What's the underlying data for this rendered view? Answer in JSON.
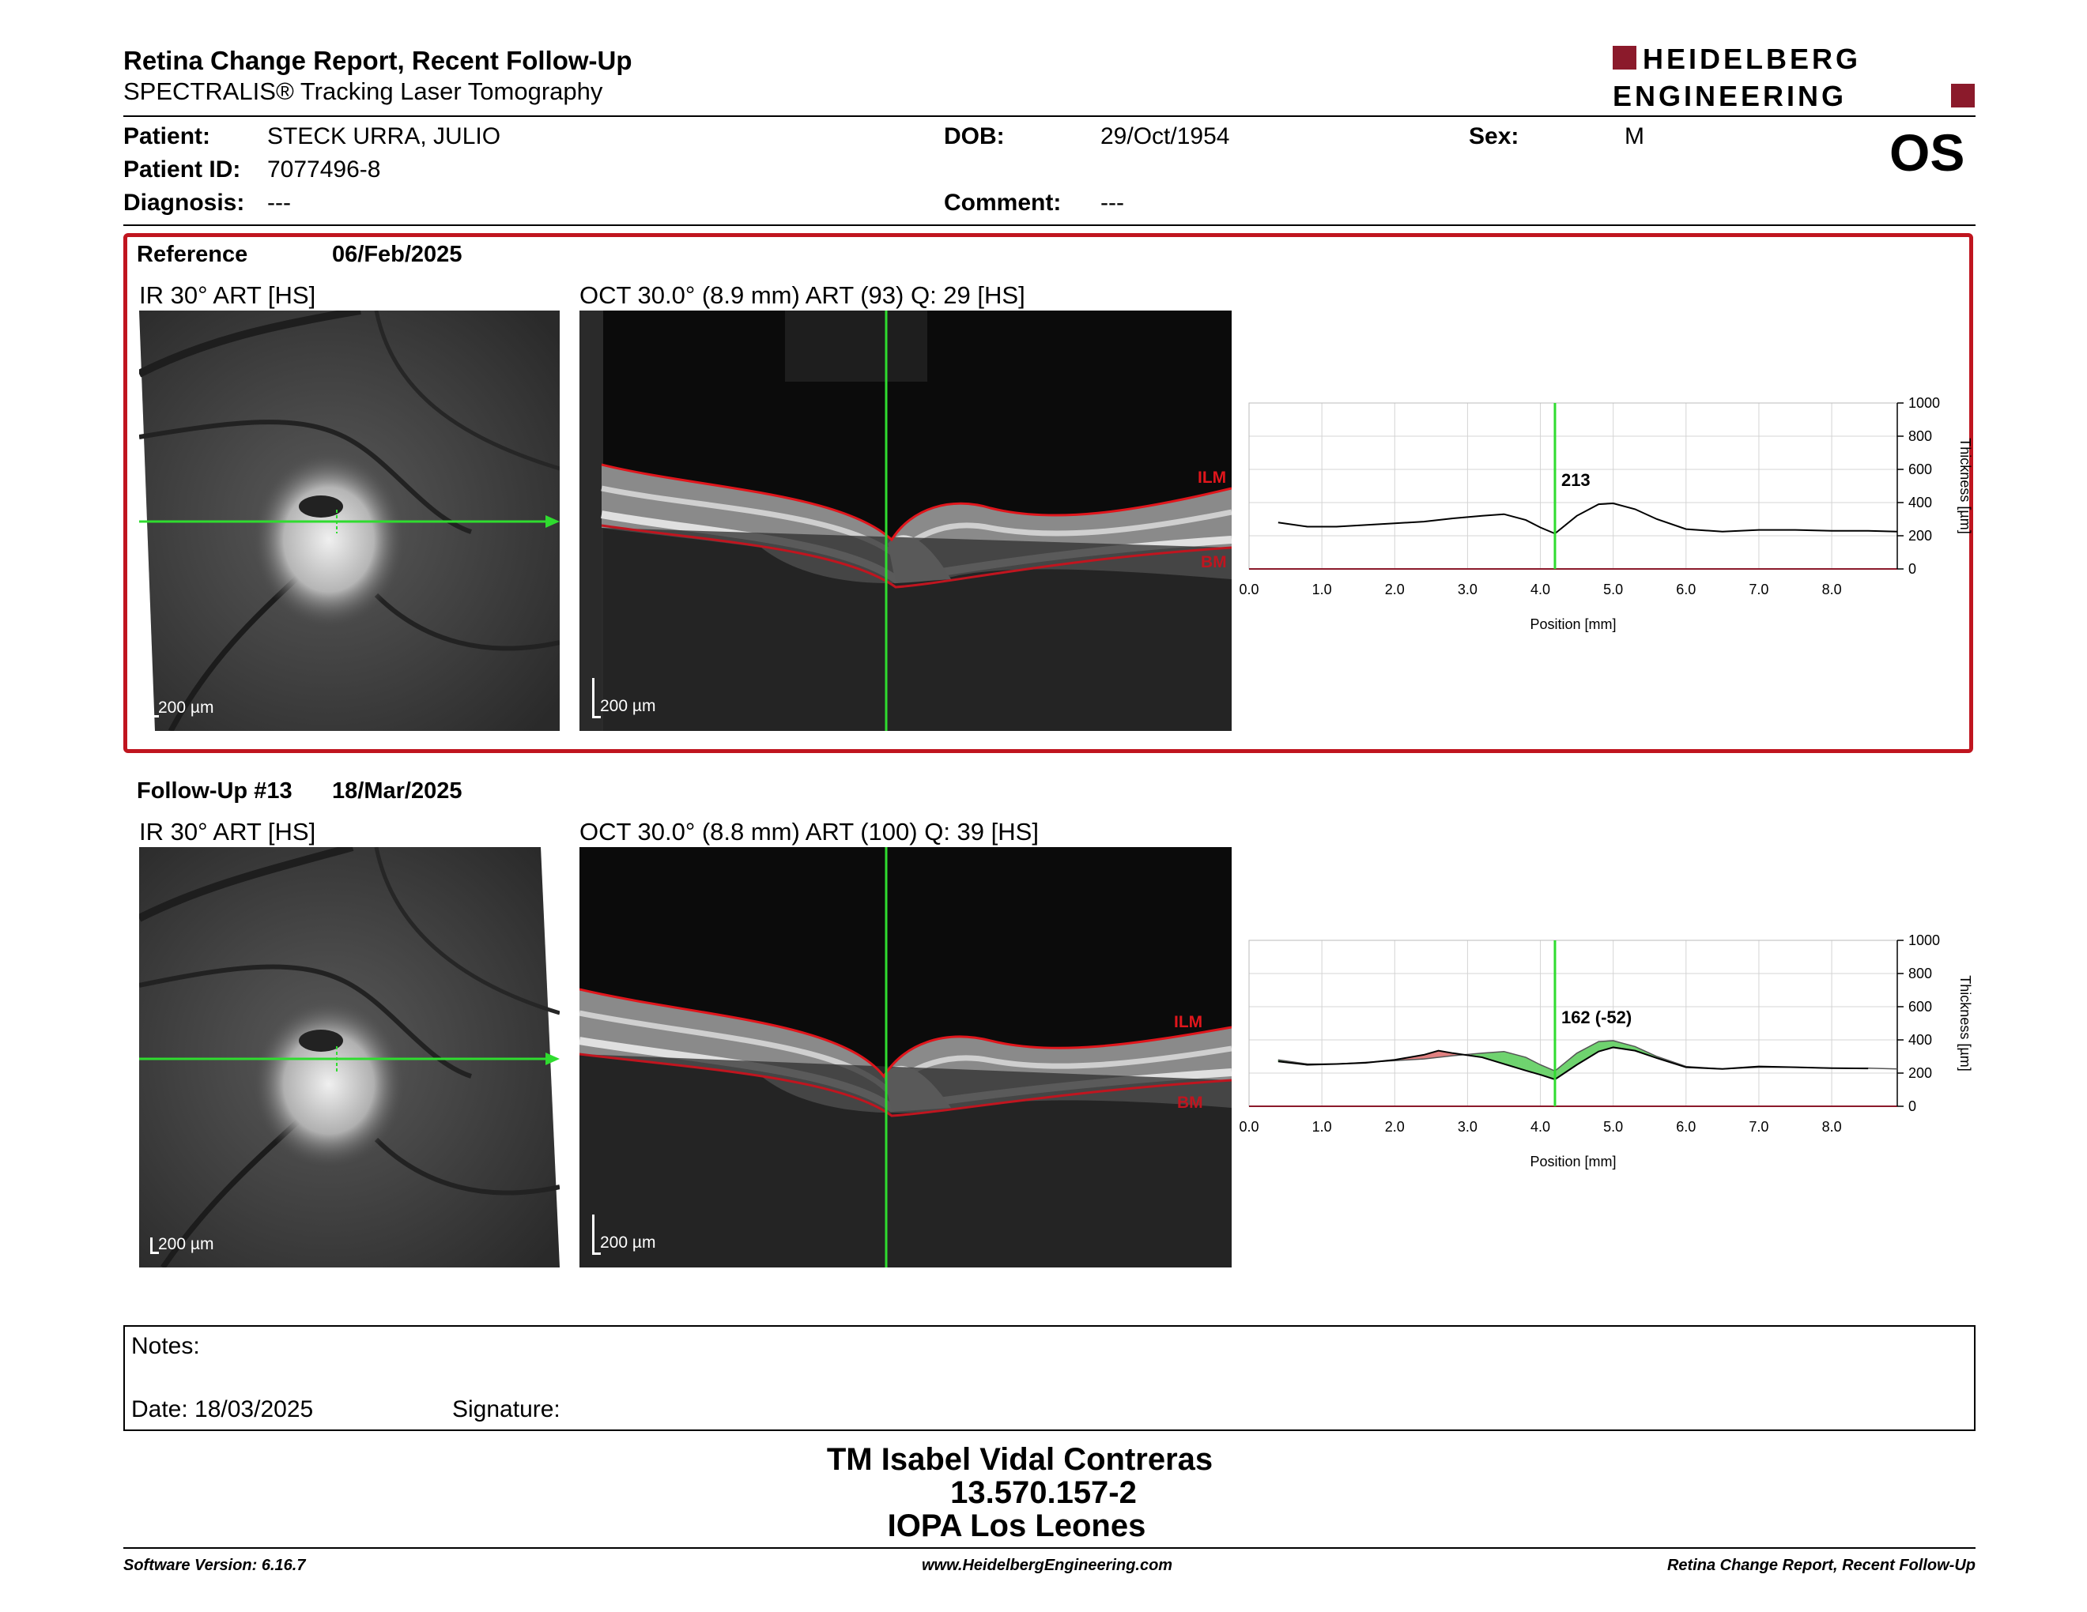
{
  "header": {
    "title": "Retina Change Report, Recent Follow-Up",
    "subtitle": "SPECTRALIS® Tracking Laser Tomography",
    "logo_line1": "HEIDELBERG",
    "logo_line2": "ENGINEERING",
    "brand_color": "#8b1a2b"
  },
  "patient": {
    "patient_label": "Patient:",
    "patient_value": "STECK URRA, JULIO",
    "id_label": "Patient ID:",
    "id_value": "7077496-8",
    "diagnosis_label": "Diagnosis:",
    "diagnosis_value": "---",
    "dob_label": "DOB:",
    "dob_value": "29/Oct/1954",
    "comment_label": "Comment:",
    "comment_value": "---",
    "sex_label": "Sex:",
    "sex_value": "M",
    "eye": "OS"
  },
  "reference": {
    "label": "Reference",
    "date": "06/Feb/2025",
    "ir_title": "IR 30° ART [HS]",
    "oct_title": "OCT 30.0° (8.9 mm) ART (93) Q: 29 [HS]",
    "scale_ir": "200 µm",
    "scale_oct": "200 µm",
    "ilm_label": "ILM",
    "bm_label": "BM",
    "box_color": "#c0151f"
  },
  "followup": {
    "label": "Follow-Up #13",
    "date": "18/Mar/2025",
    "ir_title": "IR 30° ART [HS]",
    "oct_title": "OCT 30.0° (8.8 mm) ART (100) Q: 39 [HS]",
    "scale_ir": "200 µm",
    "scale_oct": "200 µm",
    "ilm_label": "ILM",
    "bm_label": "BM"
  },
  "chart_data": [
    {
      "type": "line",
      "xlabel": "Position [mm]",
      "ylabel": "Thickness [µm]",
      "xlim": [
        0.0,
        8.9
      ],
      "ylim": [
        0,
        1000
      ],
      "x_ticks": [
        "0.0",
        "1.0",
        "2.0",
        "3.0",
        "4.0",
        "5.0",
        "6.0",
        "7.0",
        "8.0"
      ],
      "y_ticks": [
        "0",
        "200",
        "400",
        "600",
        "800",
        "1000"
      ],
      "cursor_x": 4.2,
      "cursor_label": "213",
      "grid": true,
      "series": [
        {
          "x": [
            0.4,
            0.8,
            1.2,
            1.6,
            2.0,
            2.4,
            2.8,
            3.2,
            3.5,
            3.8,
            4.0,
            4.2,
            4.5,
            4.8,
            5.0,
            5.3,
            5.6,
            6.0,
            6.5,
            7.0,
            7.5,
            8.0,
            8.5,
            8.9
          ],
          "values": [
            280,
            255,
            255,
            265,
            275,
            285,
            305,
            320,
            330,
            295,
            250,
            213,
            320,
            390,
            395,
            360,
            300,
            240,
            225,
            235,
            235,
            230,
            230,
            225
          ]
        }
      ]
    },
    {
      "type": "line",
      "xlabel": "Position [mm]",
      "ylabel": "Thickness [µm]",
      "xlim": [
        0.0,
        8.9
      ],
      "ylim": [
        0,
        1000
      ],
      "x_ticks": [
        "0.0",
        "1.0",
        "2.0",
        "3.0",
        "4.0",
        "5.0",
        "6.0",
        "7.0",
        "8.0"
      ],
      "y_ticks": [
        "0",
        "200",
        "400",
        "600",
        "800",
        "1000"
      ],
      "cursor_x": 4.2,
      "cursor_label": "162 (-52)",
      "grid": true,
      "increase_color": "#e08080",
      "decrease_color": "#6fd36f",
      "series": [
        {
          "x": [
            0.4,
            0.8,
            1.2,
            1.6,
            2.0,
            2.4,
            2.6,
            2.8,
            3.2,
            3.5,
            3.8,
            4.0,
            4.2,
            4.5,
            4.8,
            5.0,
            5.3,
            5.6,
            6.0,
            6.5,
            7.0,
            7.5,
            8.0,
            8.5
          ],
          "values": [
            270,
            250,
            255,
            262,
            280,
            310,
            335,
            320,
            295,
            255,
            215,
            190,
            162,
            250,
            330,
            355,
            335,
            290,
            235,
            225,
            240,
            235,
            230,
            228
          ]
        }
      ]
    }
  ],
  "notes": {
    "label": "Notes:",
    "date_label": "Date: 18/03/2025",
    "signature_label": "Signature:"
  },
  "signature_block": {
    "line1": "TM Isabel Vidal Contreras",
    "line2": "13.570.157-2",
    "line3": "IOPA Los Leones"
  },
  "footer": {
    "left": "Software Version: 6.16.7",
    "center": "www.HeidelbergEngineering.com",
    "right": "Retina Change Report, Recent Follow-Up"
  }
}
